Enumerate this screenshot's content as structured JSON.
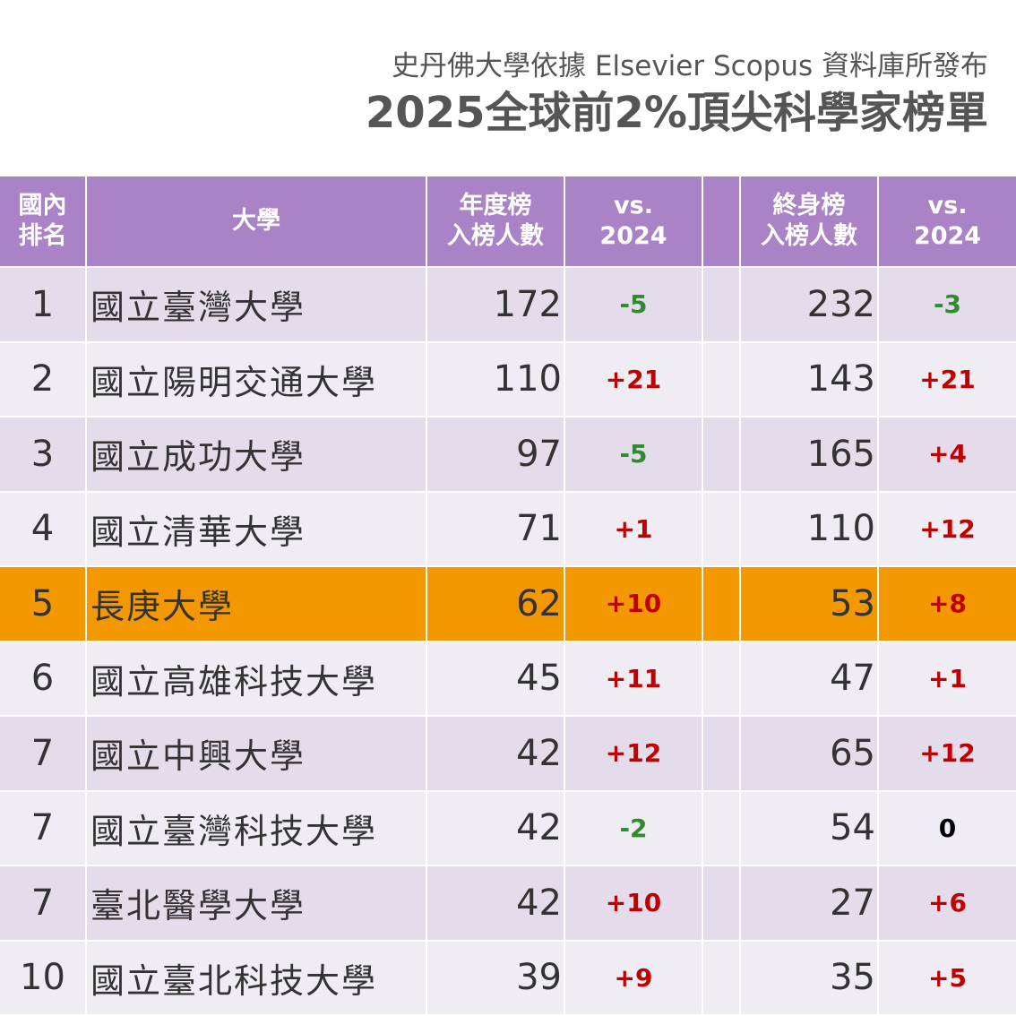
{
  "header": {
    "subtitle": "史丹佛大學依據 Elsevier Scopus 資料庫所發布",
    "title": "2025全球前2%頂尖科學家榜單"
  },
  "table": {
    "columns": [
      [
        "國內",
        "排名"
      ],
      [
        "大學"
      ],
      [
        "年度榜",
        "入榜人數"
      ],
      [
        "vs.",
        "2024"
      ],
      [
        "終身榜",
        "入榜人數"
      ],
      [
        "vs.",
        "2024"
      ]
    ],
    "rows": [
      [
        1,
        "國立臺灣大學",
        172,
        "-5",
        232,
        "-3"
      ],
      [
        2,
        "國立陽明交通大學",
        110,
        "+21",
        143,
        "+21"
      ],
      [
        3,
        "國立成功大學",
        97,
        "-5",
        165,
        "+4"
      ],
      [
        4,
        "國立清華大學",
        71,
        "+1",
        110,
        "+12"
      ],
      [
        5,
        "長庚大學",
        62,
        "+10",
        53,
        "+8"
      ],
      [
        6,
        "國立高雄科技大學",
        45,
        "+11",
        47,
        "+1"
      ],
      [
        7,
        "國立中興大學",
        42,
        "+12",
        65,
        "+12"
      ],
      [
        7,
        "國立臺灣科技大學",
        42,
        "-2",
        54,
        "0"
      ],
      [
        7,
        "臺北醫學大學",
        42,
        "+10",
        27,
        "+6"
      ],
      [
        10,
        "國立臺北科技大學",
        39,
        "+9",
        35,
        "+5"
      ]
    ]
  }
}
